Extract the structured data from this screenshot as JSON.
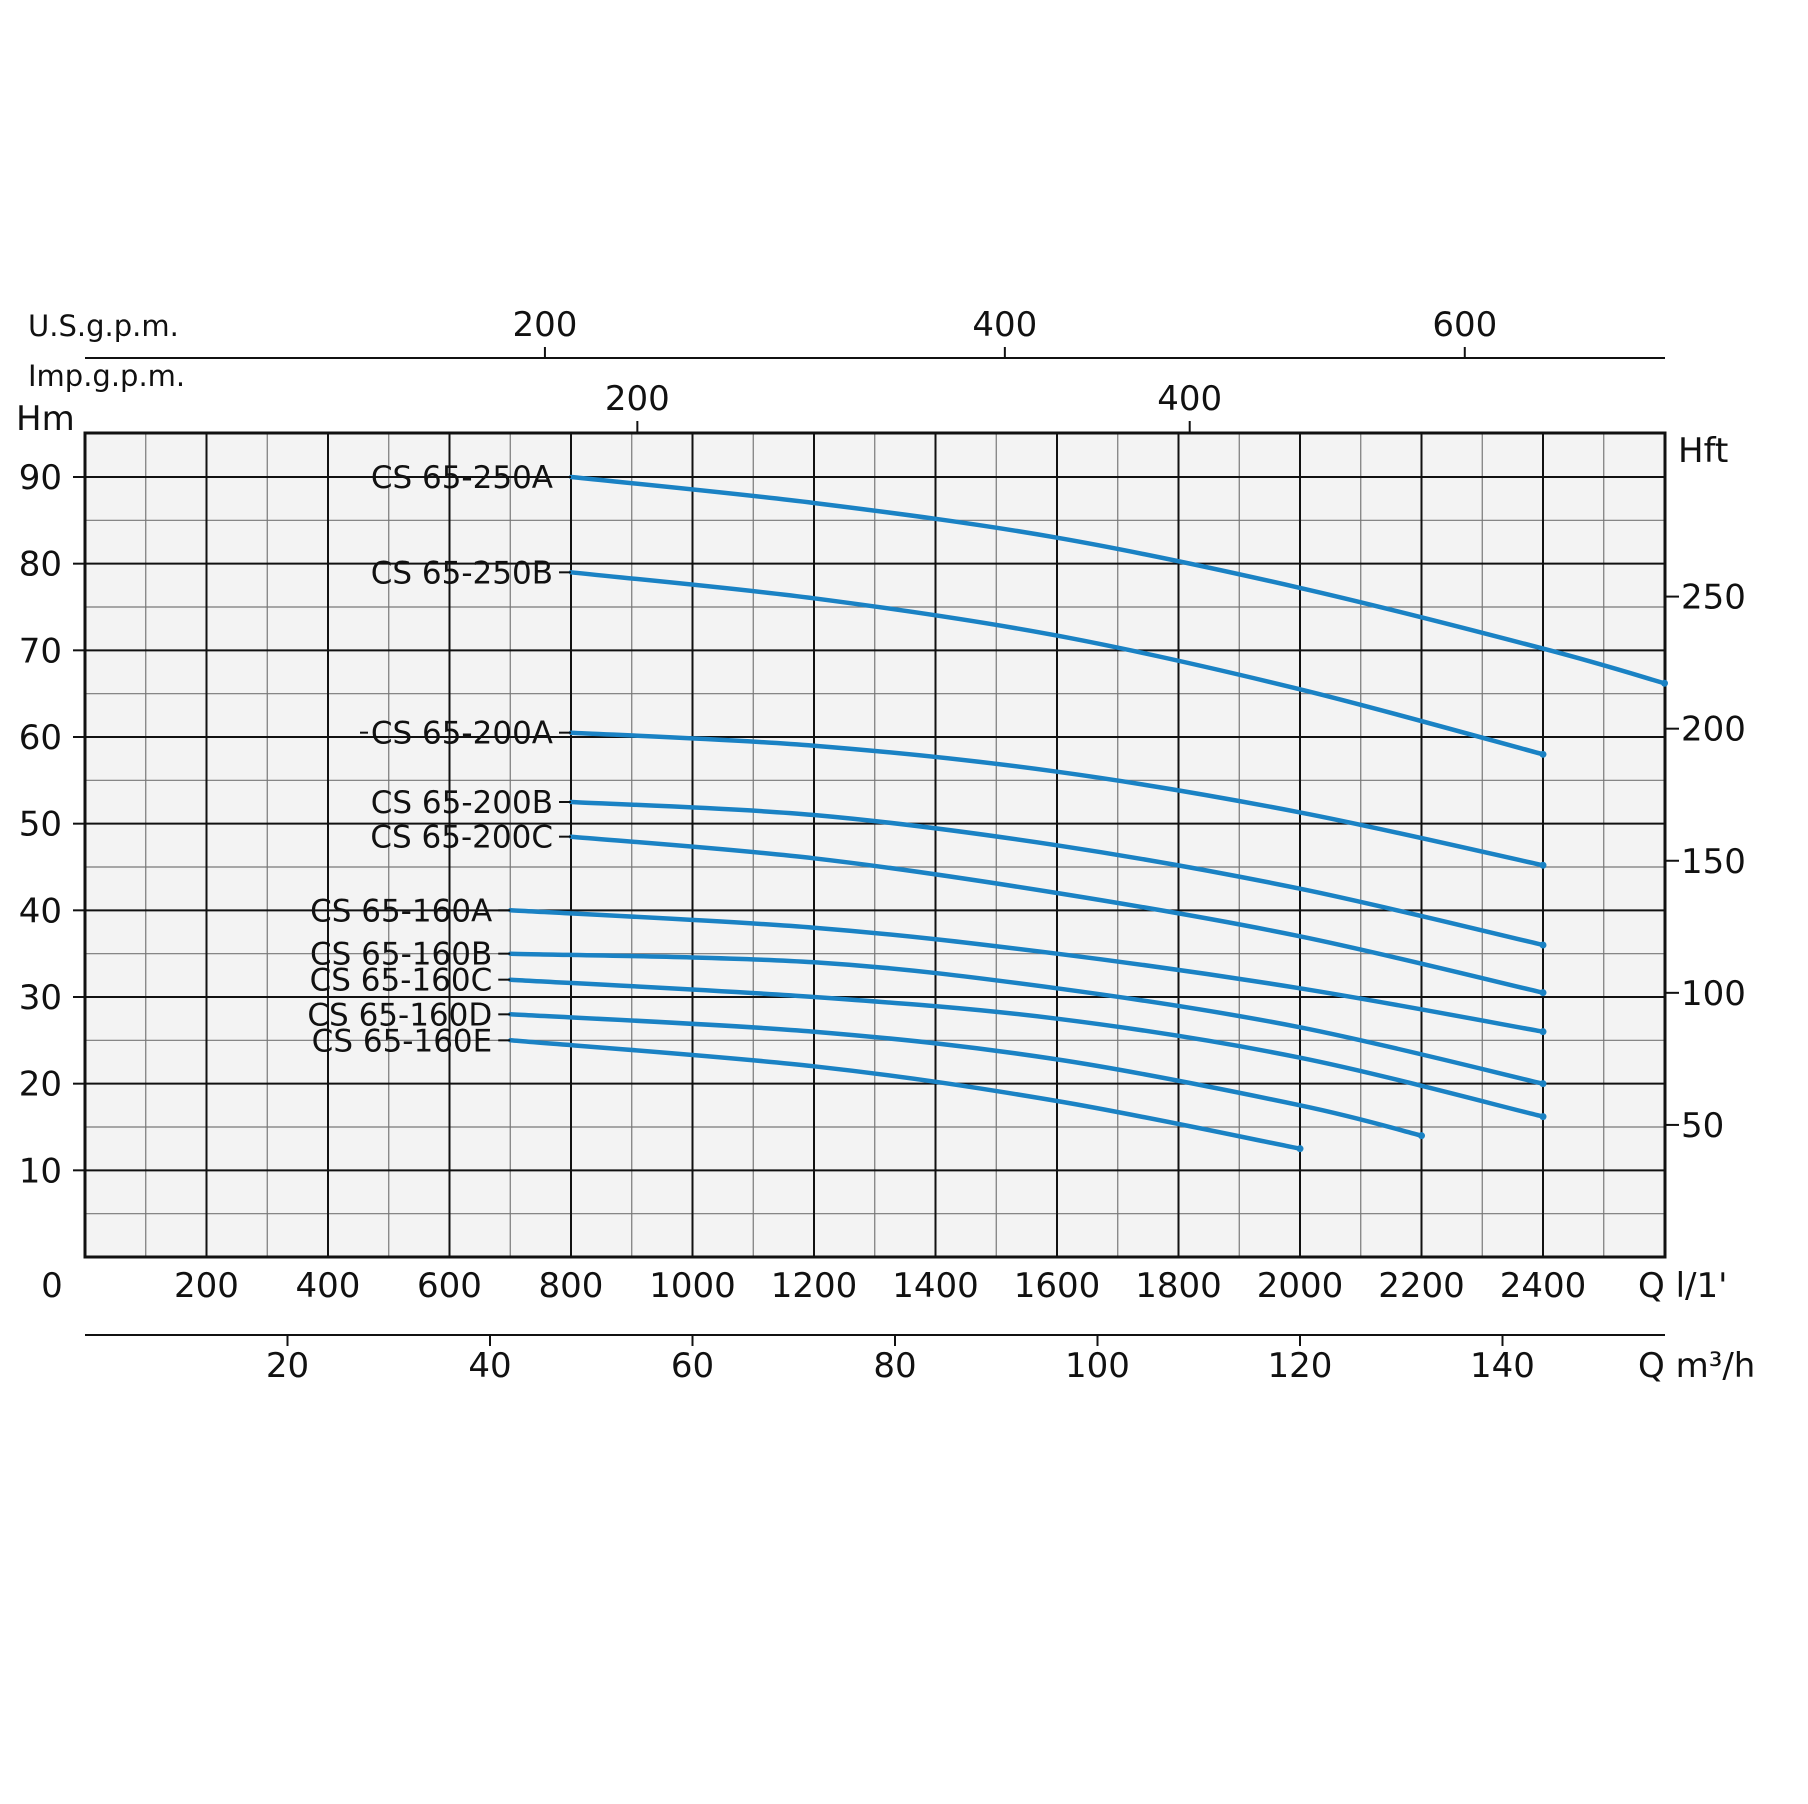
{
  "chart_data": {
    "type": "line",
    "title": "",
    "x": {
      "unit": "Q l/1'",
      "min": 0,
      "max": 2600,
      "ticks": [
        "0",
        "200",
        "400",
        "600",
        "800",
        "1000",
        "1200",
        "1400",
        "1600",
        "1800",
        "2000",
        "2200",
        "2400"
      ]
    },
    "x_m3h": {
      "unit": "Q m³/h",
      "ticks": [
        "20",
        "40",
        "60",
        "80",
        "100",
        "120",
        "140"
      ]
    },
    "x_usgpm": {
      "unit": "U.S.g.p.m.",
      "ticks": [
        "200",
        "400",
        "600"
      ]
    },
    "x_impgpm": {
      "unit": "Imp.g.p.m.",
      "ticks": [
        "200",
        "400"
      ]
    },
    "y": {
      "unit": "Hm",
      "min": 0,
      "max": 95,
      "ticks": [
        "10",
        "20",
        "30",
        "40",
        "50",
        "60",
        "70",
        "80",
        "90"
      ]
    },
    "y_ft": {
      "unit": "Hft",
      "ticks": [
        "50",
        "100",
        "150",
        "200",
        "250"
      ]
    },
    "grid": true,
    "line_color": "#1a82c4",
    "series": [
      {
        "name": "CS 65-250A",
        "x": [
          800,
          1200,
          1600,
          2000,
          2400,
          2600
        ],
        "y": [
          90,
          87,
          83,
          77.2,
          70.2,
          66.2
        ]
      },
      {
        "name": "CS 65-250B",
        "x": [
          800,
          1200,
          1600,
          2000,
          2400
        ],
        "y": [
          79,
          76,
          71.7,
          65.5,
          58
        ]
      },
      {
        "name": "CS 65-200A",
        "x": [
          800,
          1200,
          1600,
          2000,
          2400
        ],
        "y": [
          60.5,
          59,
          56,
          51.3,
          45.2
        ]
      },
      {
        "name": "CS 65-200B",
        "x": [
          800,
          1200,
          1600,
          2000,
          2400
        ],
        "y": [
          52.5,
          51,
          47.5,
          42.5,
          36
        ]
      },
      {
        "name": "CS 65-200C",
        "x": [
          800,
          1200,
          1600,
          2000,
          2400
        ],
        "y": [
          48.5,
          46,
          42,
          37,
          30.5
        ]
      },
      {
        "name": "CS 65-160A",
        "x": [
          700,
          1200,
          1600,
          2000,
          2400
        ],
        "y": [
          40,
          38,
          35,
          31,
          26
        ]
      },
      {
        "name": "CS 65-160B",
        "x": [
          700,
          1200,
          1600,
          2000,
          2400
        ],
        "y": [
          35,
          34,
          31,
          26.5,
          20
        ]
      },
      {
        "name": "CS 65-160C",
        "x": [
          700,
          1200,
          1600,
          2000,
          2400
        ],
        "y": [
          32,
          30,
          27.5,
          23,
          16.2
        ]
      },
      {
        "name": "CS 65-160D",
        "x": [
          700,
          1200,
          1600,
          2000,
          2200
        ],
        "y": [
          28,
          26,
          22.8,
          17.5,
          14
        ]
      },
      {
        "name": "CS 65-160E",
        "x": [
          700,
          1200,
          1600,
          2000
        ],
        "y": [
          25,
          22,
          18,
          12.5
        ]
      }
    ]
  }
}
